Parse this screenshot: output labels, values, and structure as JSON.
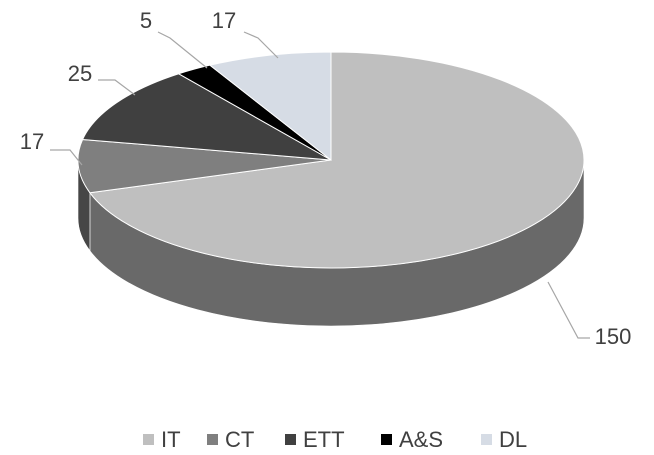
{
  "chart_data": {
    "type": "pie",
    "three_d": true,
    "categories": [
      "IT",
      "CT",
      "ETT",
      "A&S",
      "DL"
    ],
    "values": [
      150,
      17,
      25,
      5,
      17
    ],
    "colors": [
      "#bfbfbf",
      "#7f7f7f",
      "#404040",
      "#000000",
      "#d6dce5"
    ],
    "legend": "bottom"
  }
}
